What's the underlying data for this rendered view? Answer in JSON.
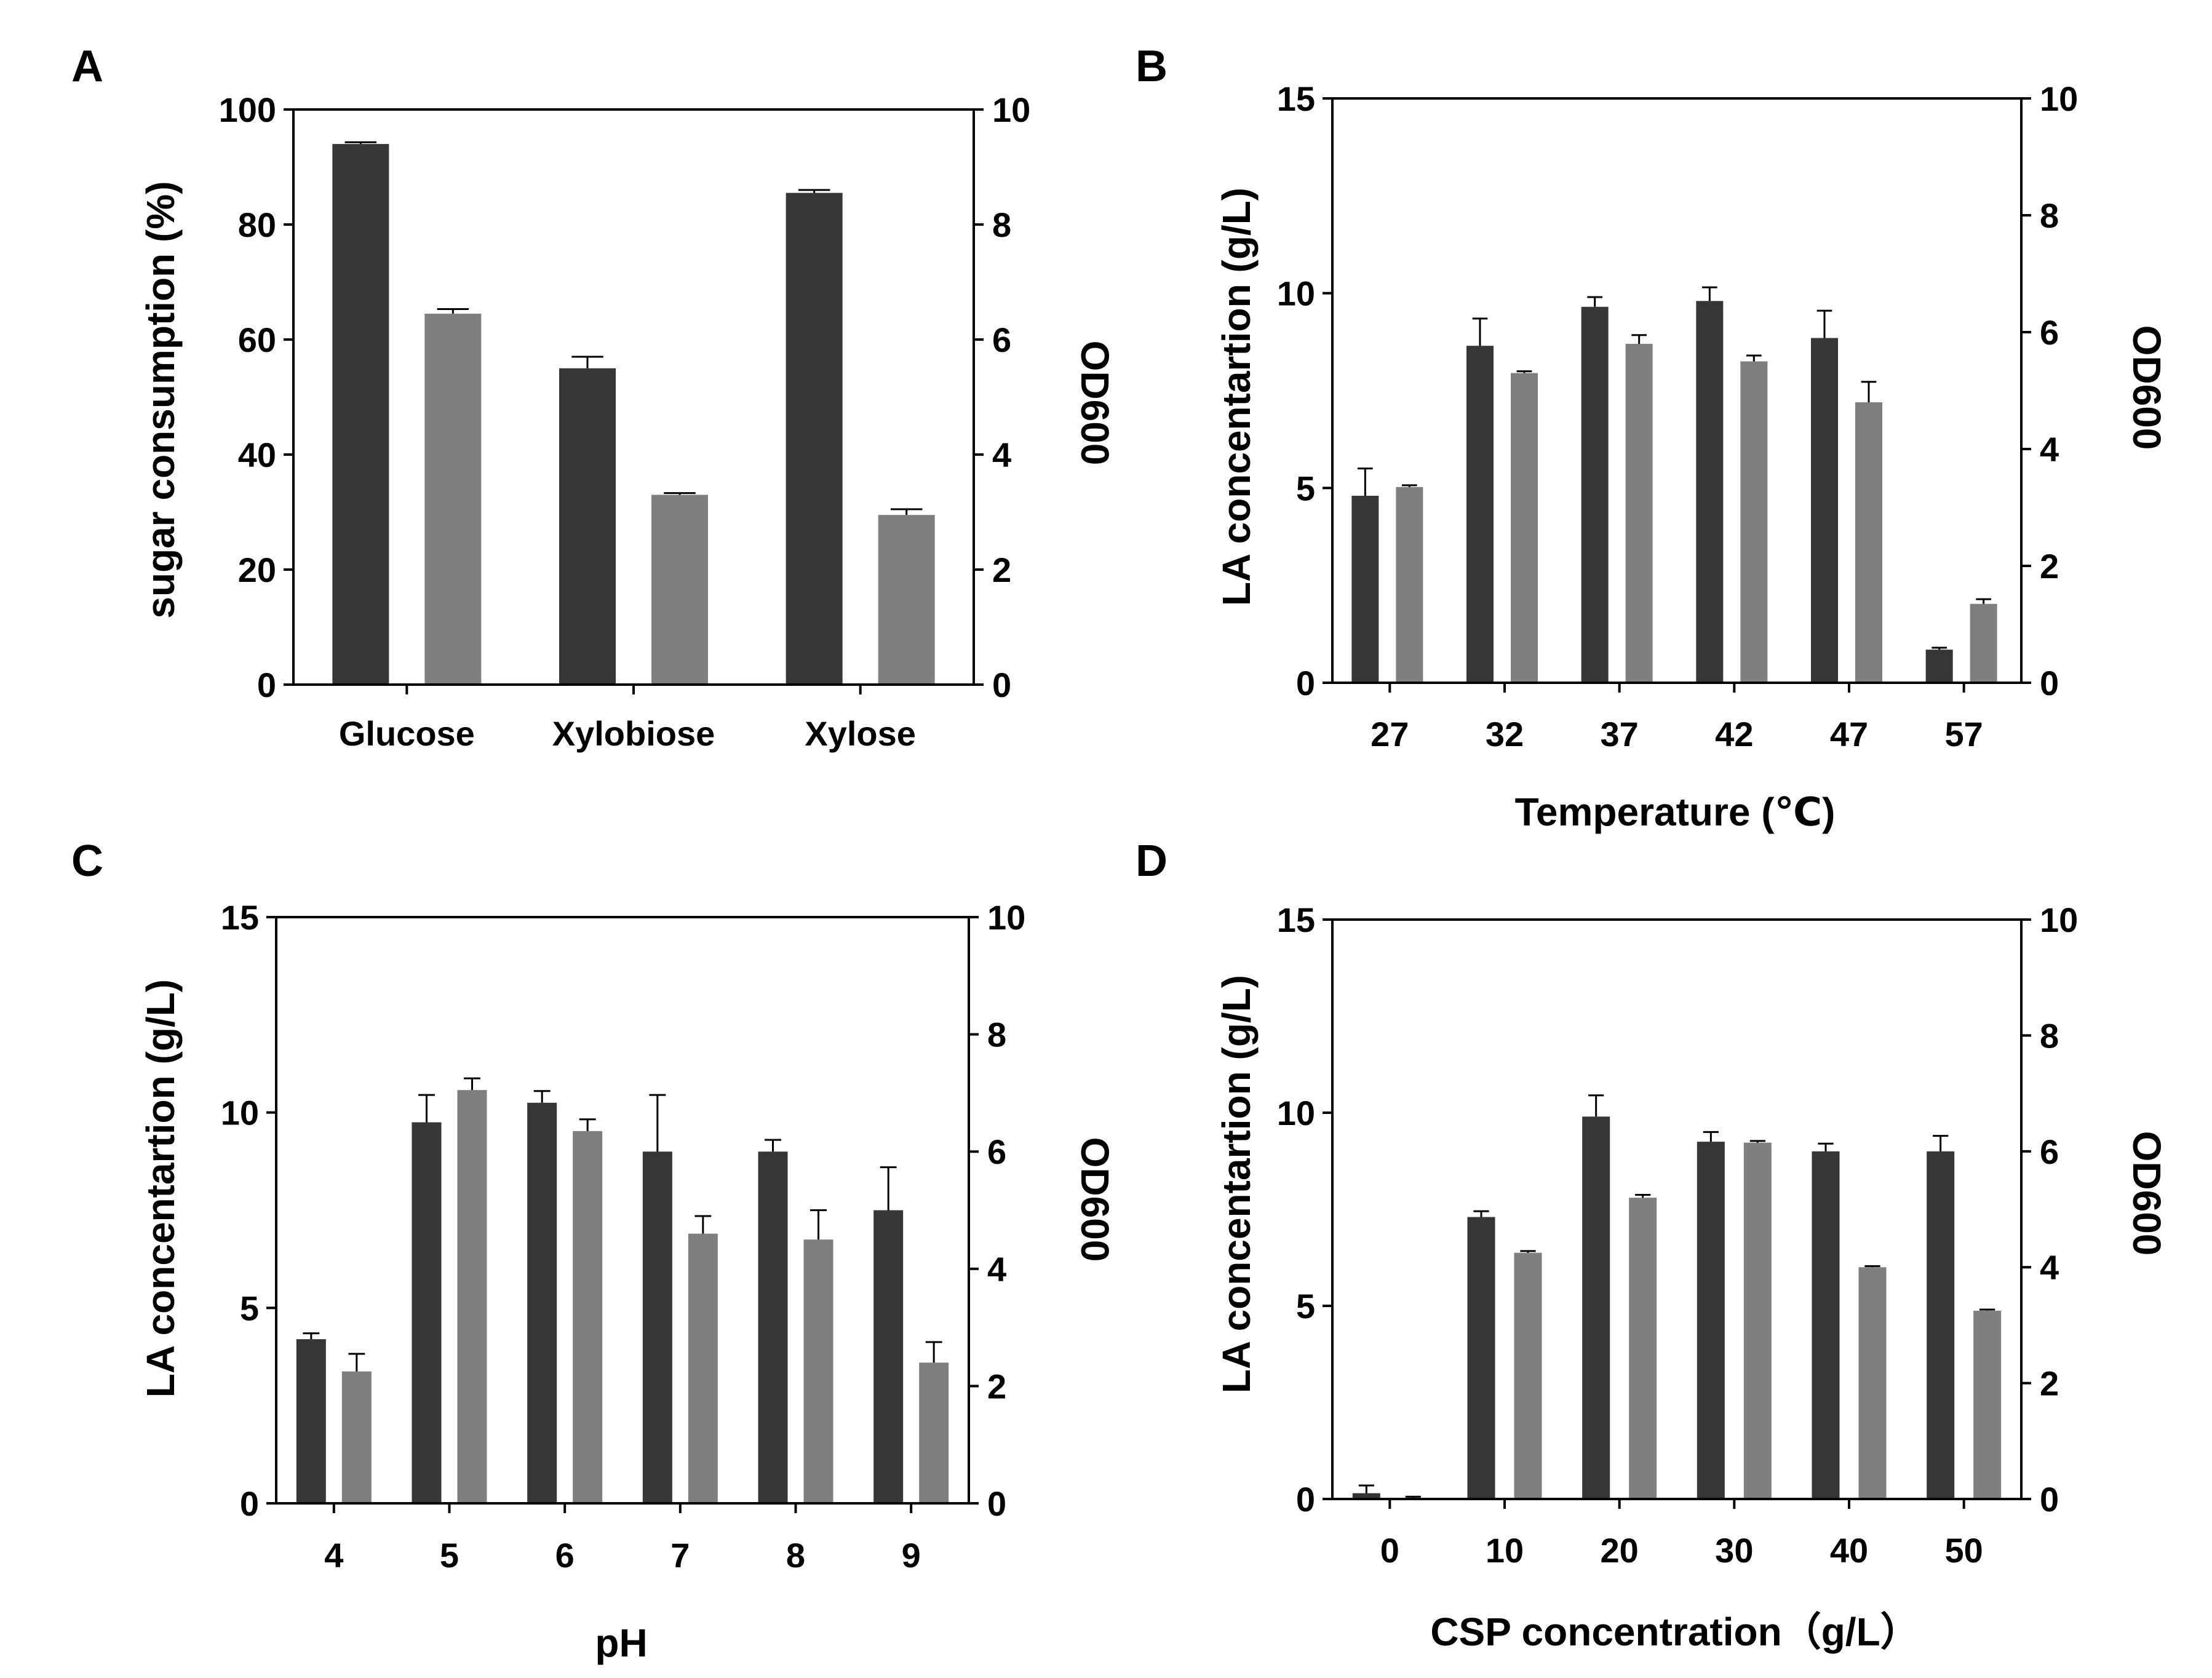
{
  "figure": {
    "colors": {
      "dark_bar": "#363636",
      "light_bar": "#7f7f7f",
      "axis": "#000000"
    }
  },
  "chart_data": [
    {
      "panel": "A",
      "type": "bar",
      "categories": [
        "Glucose",
        "Xylobiose",
        "Xylose"
      ],
      "xlabel": "",
      "ylabel": "sugar consumption (%)",
      "ylim": [
        0,
        100
      ],
      "yticks": [
        0,
        20,
        40,
        60,
        80,
        100
      ],
      "y2label": "OD600",
      "y2lim": [
        0,
        10
      ],
      "y2ticks": [
        0,
        2,
        4,
        6,
        8,
        10
      ],
      "series": [
        {
          "name": "sugar consumption (%)",
          "axis": "left",
          "values": [
            94,
            55,
            85.5
          ],
          "errors": [
            0.3,
            2.0,
            0.5
          ]
        },
        {
          "name": "OD600",
          "axis": "right",
          "values": [
            6.45,
            3.3,
            2.95
          ],
          "errors": [
            0.08,
            0.03,
            0.1
          ]
        }
      ]
    },
    {
      "panel": "B",
      "type": "bar",
      "categories": [
        "27",
        "32",
        "37",
        "42",
        "47",
        "57"
      ],
      "xlabel": "Temperature (℃)",
      "ylabel": "LA concentartion (g/L)",
      "ylim": [
        0,
        15
      ],
      "yticks": [
        0,
        5,
        10,
        15
      ],
      "y2label": "OD600",
      "y2lim": [
        0,
        10
      ],
      "y2ticks": [
        0,
        2,
        4,
        6,
        8,
        10
      ],
      "series": [
        {
          "name": "LA concentration (g/L)",
          "axis": "left",
          "values": [
            4.8,
            8.65,
            9.65,
            9.8,
            8.85,
            0.85
          ],
          "errors": [
            0.7,
            0.7,
            0.25,
            0.35,
            0.7,
            0.05
          ]
        },
        {
          "name": "OD600",
          "axis": "right",
          "values": [
            3.35,
            5.3,
            5.8,
            5.5,
            4.8,
            1.35
          ],
          "errors": [
            0.03,
            0.03,
            0.15,
            0.1,
            0.35,
            0.08
          ]
        }
      ]
    },
    {
      "panel": "C",
      "type": "bar",
      "categories": [
        "4",
        "5",
        "6",
        "7",
        "8",
        "9"
      ],
      "xlabel": "pH",
      "ylabel": "LA concentartion (g/L)",
      "ylim": [
        0,
        15
      ],
      "yticks": [
        0,
        5,
        10,
        15
      ],
      "y2label": "OD600",
      "y2lim": [
        0,
        10
      ],
      "y2ticks": [
        0,
        2,
        4,
        6,
        8,
        10
      ],
      "series": [
        {
          "name": "LA concentration (g/L)",
          "axis": "left",
          "values": [
            4.2,
            9.75,
            10.25,
            9.0,
            9.0,
            7.5
          ],
          "errors": [
            0.15,
            0.7,
            0.3,
            1.45,
            0.3,
            1.1
          ]
        },
        {
          "name": "OD600",
          "axis": "right",
          "values": [
            2.25,
            7.05,
            6.35,
            4.6,
            4.5,
            2.4
          ],
          "errors": [
            0.3,
            0.2,
            0.2,
            0.3,
            0.5,
            0.35
          ]
        }
      ]
    },
    {
      "panel": "D",
      "type": "bar",
      "categories": [
        "0",
        "10",
        "20",
        "30",
        "40",
        "50"
      ],
      "xlabel": "CSP concentration（g/L）",
      "ylabel": "LA concentartion (g/L)",
      "ylim": [
        0,
        15
      ],
      "yticks": [
        0,
        5,
        10,
        15
      ],
      "y2label": "OD600",
      "y2lim": [
        0,
        10
      ],
      "y2ticks": [
        0,
        2,
        4,
        6,
        8,
        10
      ],
      "series": [
        {
          "name": "LA concentration (g/L)",
          "axis": "left",
          "values": [
            0.15,
            7.3,
            9.9,
            9.25,
            9.0,
            9.0
          ],
          "errors": [
            0.2,
            0.15,
            0.55,
            0.25,
            0.2,
            0.4
          ]
        },
        {
          "name": "OD600",
          "axis": "right",
          "values": [
            0.02,
            4.25,
            5.2,
            6.15,
            4.0,
            3.25
          ],
          "errors": [
            0.02,
            0.03,
            0.05,
            0.03,
            0.02,
            0.02
          ]
        }
      ]
    }
  ]
}
